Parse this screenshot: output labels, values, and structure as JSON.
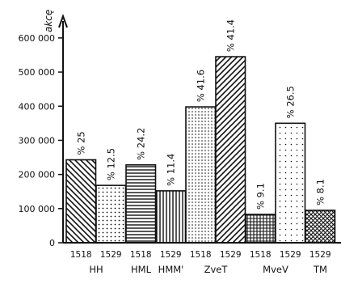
{
  "chart_data": {
    "type": "bar",
    "ylabel": "akcę",
    "yticks": [
      0,
      100000,
      200000,
      300000,
      400000,
      500000,
      600000
    ],
    "ytick_labels": [
      "0",
      "100 000",
      "200 000",
      "300 000",
      "400 000",
      "500 000",
      "600 000"
    ],
    "ylim": [
      0,
      640000
    ],
    "groups": [
      {
        "name": "HH",
        "bars": [
          {
            "year": "1518",
            "value": 243000,
            "pct": "% 25",
            "pattern": "back-diagonal"
          },
          {
            "year": "1529",
            "value": 168000,
            "pct": "% 12.5",
            "pattern": "dots"
          }
        ]
      },
      {
        "name": "HML",
        "bars": [
          {
            "year": "1518",
            "value": 228000,
            "pct": "% 24.2",
            "pattern": "horizontal"
          }
        ]
      },
      {
        "name": "HMM'",
        "bars": [
          {
            "year": "1529",
            "value": 152000,
            "pct": "% 11.4",
            "pattern": "vertical"
          }
        ]
      },
      {
        "name": "ZveT",
        "bars": [
          {
            "year": "1518",
            "value": 398000,
            "pct": "% 41.6",
            "pattern": "dots-dense"
          },
          {
            "year": "1529",
            "value": 545000,
            "pct": "% 41.4",
            "pattern": "forward-diagonal"
          }
        ]
      },
      {
        "name": "MveV",
        "bars": [
          {
            "year": "1518",
            "value": 83000,
            "pct": "% 9.1",
            "pattern": "grid"
          },
          {
            "year": "1529",
            "value": 350000,
            "pct": "% 26.5",
            "pattern": "dots-sparse"
          }
        ]
      },
      {
        "name": "TM",
        "bars": [
          {
            "year": "1529",
            "value": 95000,
            "pct": "% 8.1",
            "pattern": "crosshatch"
          }
        ]
      }
    ]
  }
}
